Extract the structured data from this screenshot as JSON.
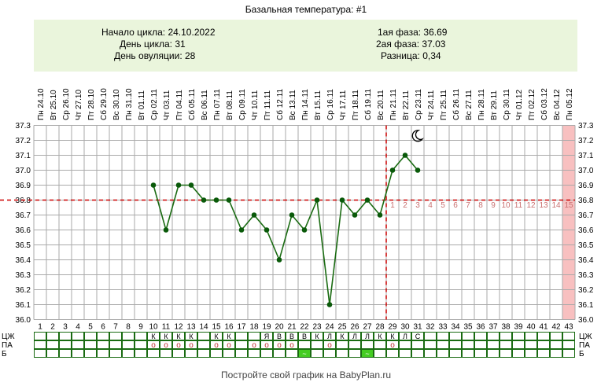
{
  "title": "Базальная температура: #1",
  "header": {
    "cycle_start": "Начало цикла: 24.10.2022",
    "cycle_day": "День цикла: 31",
    "ovulation_day": "День овуляции: 28",
    "phase1": "1ая фаза: 36.69",
    "phase2": "2ая фаза: 37.03",
    "difference": "Разница: 0,34"
  },
  "footer": "Постройте свой график на BabyPlan.ru",
  "colors": {
    "line": "#1a6b12",
    "point": "#0a5a0a",
    "coverline": "#cc0000",
    "highlight_col": "#f8c0c0",
    "grid": "#aaaaaa",
    "header_bg": "#eaf5dc",
    "phase2_days": "#c87070",
    "mark_green": "#44cc22"
  },
  "chart_data": {
    "type": "line",
    "title": "Базальная температура: #1",
    "ylim": [
      36.0,
      37.3
    ],
    "y_ticks": [
      "36.0",
      "36.1",
      "36.2",
      "36.3",
      "36.4",
      "36.5",
      "36.6",
      "36.7",
      "36.8",
      "36.9",
      "37.0",
      "37.1",
      "37.2",
      "37.3"
    ],
    "cycle_days": [
      "1",
      "2",
      "3",
      "4",
      "5",
      "6",
      "7",
      "8",
      "9",
      "10",
      "11",
      "12",
      "13",
      "14",
      "15",
      "16",
      "17",
      "18",
      "19",
      "20",
      "21",
      "22",
      "23",
      "24",
      "25",
      "26",
      "27",
      "28",
      "29",
      "30",
      "31",
      "32",
      "33",
      "34",
      "35",
      "36",
      "37",
      "38",
      "39",
      "40",
      "41",
      "42",
      "43"
    ],
    "dates": [
      "Пн 24.10",
      "Вт 25.10",
      "Ср 26.10",
      "Чт 27.10",
      "Пт 28.10",
      "Сб 29.10",
      "Вс 30.10",
      "Пн 31.10",
      "Вт 01.11",
      "Ср 02.11",
      "Чт 03.11",
      "Пт 04.11",
      "Сб 05.11",
      "Вс 06.11",
      "Пн 07.11",
      "Вт 08.11",
      "Ср 09.11",
      "Чт 10.11",
      "Пт 11.11",
      "Сб 12.11",
      "Вс 13.11",
      "Пн 14.11",
      "Вт 15.11",
      "Ср 16.11",
      "Чт 17.11",
      "Пт 18.11",
      "Сб 19.11",
      "Вс 20.11",
      "Пн 21.11",
      "Вт 22.11",
      "Ср 23.11",
      "Чт 24.11",
      "Пт 25.11",
      "Сб 26.11",
      "Вс 27.11",
      "Пн 28.11",
      "Вт 29.11",
      "Ср 30.11",
      "Чт 01.12",
      "Пт 02.12",
      "Сб 03.12",
      "Вс 04.12",
      "Пн 05.12"
    ],
    "series": [
      {
        "x": [
          10,
          11,
          12,
          13,
          14,
          15,
          16,
          17,
          18,
          19,
          20,
          21,
          22,
          23,
          24,
          25,
          26,
          27,
          28,
          29,
          30,
          31
        ],
        "y": [
          36.9,
          36.6,
          36.9,
          36.9,
          36.8,
          36.8,
          36.8,
          36.6,
          36.7,
          36.6,
          36.4,
          36.7,
          36.6,
          36.8,
          36.1,
          36.8,
          36.7,
          36.8,
          36.7,
          37.0,
          37.1,
          37.0
        ]
      }
    ],
    "coverline": 36.8,
    "ovulation_day": 28,
    "highlighted_day": 43,
    "moon_day": 31,
    "moon_temp": 37.23,
    "phase2_day_labels": [
      "1",
      "2",
      "3",
      "4",
      "5",
      "6",
      "7",
      "8",
      "9",
      "10",
      "11",
      "12",
      "13",
      "14",
      "15"
    ],
    "phase2_label_start_day": 29,
    "phase2_label_temp": 36.77,
    "rows": {
      "labels": [
        "ЦЖ",
        "ПА",
        "Б"
      ],
      "cz": {
        "10": "К",
        "11": "К",
        "12": "К",
        "13": "К",
        "15": "К",
        "16": "К",
        "19": "Я",
        "20": "В",
        "21": "В",
        "22": "В",
        "23": "К",
        "24": "Л",
        "25": "К",
        "26": "Л",
        "27": "Л",
        "28": "К",
        "29": "К",
        "30": "Л",
        "31": "С"
      },
      "pa": {
        "10": "о",
        "11": "о",
        "12": "о",
        "13": "о",
        "15": "о",
        "16": "о",
        "18": "о",
        "19": "о",
        "20": "о",
        "21": "о",
        "24": "о",
        "29": "о"
      },
      "b_marked": [
        22,
        27
      ],
      "b_mark_symbol": "~"
    },
    "grid": true
  }
}
